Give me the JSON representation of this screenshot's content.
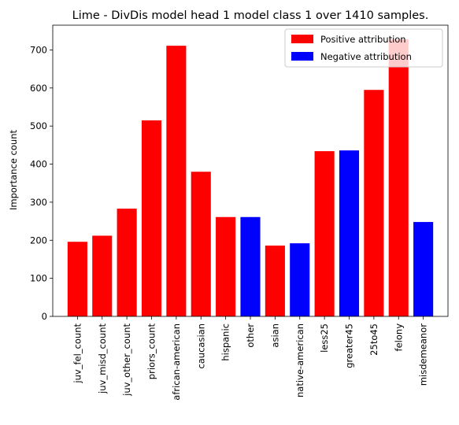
{
  "chart_data": {
    "type": "bar",
    "title": "Lime - DivDis model head 1 model class 1 over 1410 samples.",
    "xlabel": "",
    "ylabel": "Importance count",
    "ylim": [
      0,
      765
    ],
    "yticks": [
      0,
      100,
      200,
      300,
      400,
      500,
      600,
      700
    ],
    "grid": false,
    "legend_position": "top-right",
    "legend": [
      {
        "label": "Positive attribution",
        "color": "#ff0000"
      },
      {
        "label": "Negative attribution",
        "color": "#0000ff"
      }
    ],
    "categories": [
      "juv_fel_count",
      "juv_misd_count",
      "juv_other_count",
      "priors_count",
      "african-american",
      "caucasian",
      "hispanic",
      "other",
      "asian",
      "native-american",
      "less25",
      "greater45",
      "25to45",
      "felony",
      "misdemeanor"
    ],
    "values": [
      196,
      212,
      283,
      515,
      711,
      380,
      261,
      261,
      186,
      192,
      434,
      436,
      595,
      728,
      248
    ],
    "attribution": [
      "positive",
      "positive",
      "positive",
      "positive",
      "positive",
      "positive",
      "positive",
      "negative",
      "positive",
      "negative",
      "positive",
      "negative",
      "positive",
      "positive",
      "negative"
    ]
  }
}
